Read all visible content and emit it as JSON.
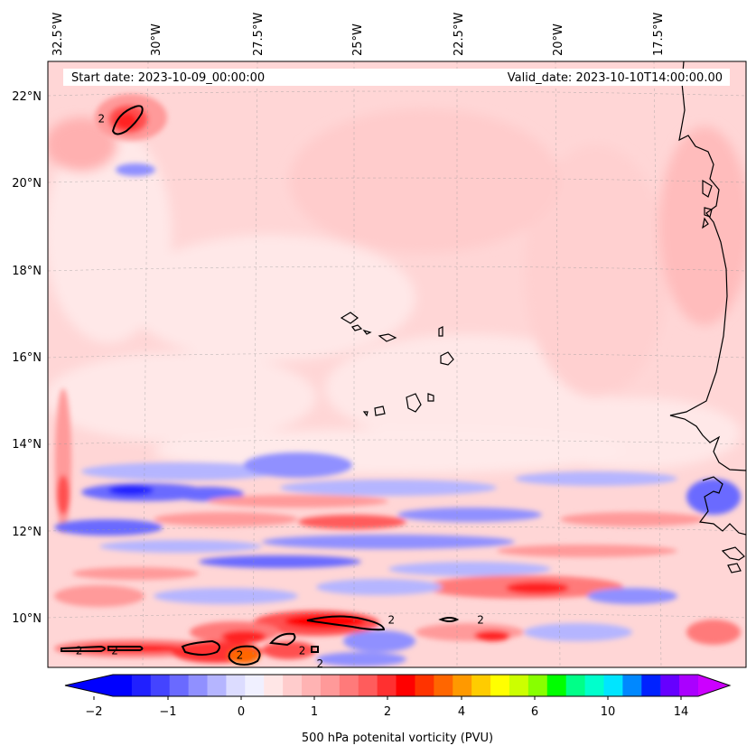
{
  "map": {
    "start_date_text": "Start date: 2023-10-09_00:00:00",
    "valid_date_text": "Valid_date: 2023-10-10T14:00:00.00",
    "longitude_ticks": [
      "32.5°W",
      "30°W",
      "27.5°W",
      "25°W",
      "22.5°W",
      "20°W",
      "17.5°W"
    ],
    "latitude_ticks": [
      "22°N",
      "20°N",
      "18°N",
      "16°N",
      "14°N",
      "12°N",
      "10°N"
    ],
    "contour_label": "2",
    "contour_label_positions": [
      {
        "lon": -31.5,
        "lat": 21.4
      },
      {
        "lon": -32.0,
        "lat": 9.2
      },
      {
        "lon": -31.2,
        "lat": 9.2
      },
      {
        "lon": -28.4,
        "lat": 9.1
      },
      {
        "lon": -27.0,
        "lat": 9.2
      },
      {
        "lon": -25.0,
        "lat": 9.9
      },
      {
        "lon": -23.0,
        "lat": 9.9
      },
      {
        "lon": -26.6,
        "lat": 8.9
      }
    ]
  },
  "colorbar": {
    "label": "500 hPa potenital vorticity (PVU)",
    "tick_labels": [
      "−2",
      "−1",
      "0",
      "1",
      "2",
      "4",
      "6",
      "10",
      "14"
    ],
    "colors": [
      "#0000ff",
      "#2020ff",
      "#4444ff",
      "#6a6aff",
      "#9090ff",
      "#b5b5ff",
      "#dcdcff",
      "#f0f0ff",
      "#ffe6e6",
      "#ffcccc",
      "#ffb3b3",
      "#ff9999",
      "#ff7a7a",
      "#ff5c5c",
      "#ff3030",
      "#ff0000",
      "#ff3300",
      "#ff6600",
      "#ff9900",
      "#ffcc00",
      "#ffff00",
      "#ccff00",
      "#88ff00",
      "#00ff00",
      "#00ff88",
      "#00ffcc",
      "#00e5ff",
      "#0088ff",
      "#0022ff",
      "#6600ff",
      "#aa00ff"
    ],
    "extend_min_color": "#0000ff",
    "extend_max_color": "#cc00ff"
  }
}
